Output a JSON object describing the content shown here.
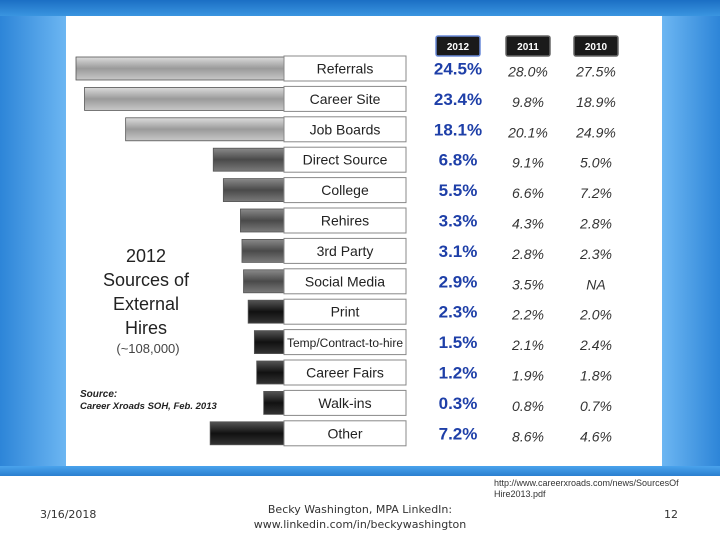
{
  "chart_data": {
    "type": "table",
    "title_lines": [
      "2012",
      "Sources of",
      "External",
      "Hires"
    ],
    "subtitle": "(~108,000)",
    "source_label": "Source:",
    "source_text": "Career Xroads SOH, Feb. 2013",
    "years": [
      "2012",
      "2011",
      "2010"
    ],
    "categories": [
      "Referrals",
      "Career Site",
      "Job Boards",
      "Direct Source",
      "College",
      "Rehires",
      "3rd Party",
      "Social Media",
      "Print",
      "Temp/Contract-to-hire",
      "Career Fairs",
      "Walk-ins",
      "Other"
    ],
    "series": [
      {
        "name": "2012",
        "values": [
          "24.5%",
          "23.4%",
          "18.1%",
          "6.8%",
          "5.5%",
          "3.3%",
          "3.1%",
          "2.9%",
          "2.3%",
          "1.5%",
          "1.2%",
          "0.3%",
          "7.2%"
        ]
      },
      {
        "name": "2011",
        "values": [
          "28.0%",
          "9.8%",
          "20.1%",
          "9.1%",
          "6.6%",
          "4.3%",
          "2.8%",
          "3.5%",
          "2.2%",
          "2.1%",
          "1.9%",
          "0.8%",
          "8.6%"
        ]
      },
      {
        "name": "2010",
        "values": [
          "27.5%",
          "18.9%",
          "24.9%",
          "5.0%",
          "7.2%",
          "2.8%",
          "2.3%",
          "NA",
          "2.0%",
          "2.4%",
          "1.8%",
          "0.7%",
          "4.6%"
        ]
      }
    ],
    "bar_values_2012": [
      24.5,
      23.4,
      18.1,
      6.8,
      5.5,
      3.3,
      3.1,
      2.9,
      2.3,
      1.5,
      1.2,
      0.3,
      7.2
    ]
  },
  "footer": {
    "date": "3/16/2018",
    "author_line1": "Becky Washington, MPA  LinkedIn:",
    "author_line2": "www.linkedin.com/in/beckywashington",
    "url": "http://www.careerxroads.com/news/SourcesOfHire2013.pdf",
    "page_number": "12"
  },
  "colors": {
    "accent": "#2d85d8",
    "year_badge": "#1a1a1a",
    "year_2012": "#1e3fa8",
    "bar_light": "#9a9a9a",
    "bar_dark": "#1a1a1a"
  }
}
